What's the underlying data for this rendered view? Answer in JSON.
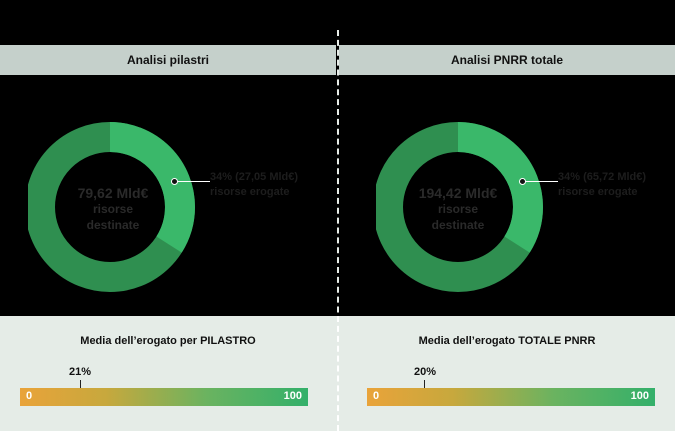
{
  "page": {
    "title": ""
  },
  "panels": [
    {
      "header": "Analisi pilastri",
      "subtitle": "",
      "donut": {
        "total": "79,62 Mld€",
        "total_caption_line1": "risorse",
        "total_caption_line2": "destinate",
        "share_percent": 34,
        "callout_line1": "34% (27,05 Mld€)",
        "callout_line2": "risorse erogate"
      },
      "media": {
        "title": "Media dell’erogato per  PILASTRO",
        "value_label": "21%",
        "value": 21,
        "min": "0",
        "max": "100"
      }
    },
    {
      "header": "Analisi PNRR totale",
      "subtitle": "",
      "donut": {
        "total": "194,42 Mld€",
        "total_caption_line1": "risorse",
        "total_caption_line2": "destinate",
        "share_percent": 34,
        "callout_line1": "34% (65,72 Mld€)",
        "callout_line2": "risorse erogate"
      },
      "media": {
        "title": "Media dell’erogato TOTALE PNRR",
        "value_label": "20%",
        "value": 20,
        "min": "0",
        "max": "100"
      }
    }
  ],
  "colors": {
    "donut_remaining": "#2f8f50",
    "donut_share": "#3ab86a",
    "header_bg": "#c5d0cb",
    "bottom_bg": "#e5ece7",
    "bar_start": "#e9a33a",
    "bar_end": "#33b06a"
  }
}
